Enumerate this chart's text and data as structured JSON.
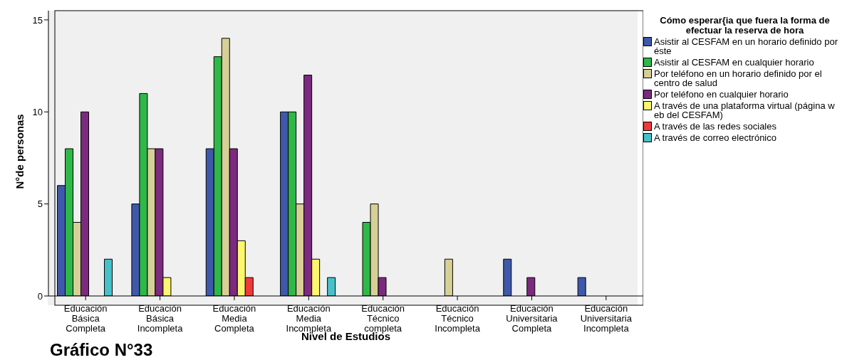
{
  "chart_data": {
    "type": "bar",
    "title": "Gráfico N°33",
    "xlabel": "Nivel de Estudios",
    "ylabel": "N°de personas",
    "legend_title": "Cómo esperar{ia que fuera la forma de efectuar la reserva de hora",
    "categories": [
      "Educación Básica Completa",
      "Educación Básica Incompleta",
      "Educación Media Completa",
      "Educación Media Incompleta",
      "Educación Técnico completa",
      "Educación Técnico Incompleta",
      "Educación Universitaria Completa",
      "Educación Universitaria Incompleta"
    ],
    "series": [
      {
        "name": "Asistir al CESFAM en un horario definido por éste",
        "color": "#3f58aa",
        "values": [
          6,
          5,
          8,
          10,
          0,
          0,
          2,
          1
        ]
      },
      {
        "name": "Asistir al CESFAM  en cualquier horario",
        "color": "#2eb848",
        "values": [
          8,
          11,
          13,
          10,
          4,
          0,
          0,
          0
        ]
      },
      {
        "name": "Por teléfono en un horario definido por el centro de salud",
        "color": "#d6d097",
        "values": [
          4,
          8,
          14,
          5,
          5,
          2,
          0,
          0
        ]
      },
      {
        "name": "Por teléfono en cualquier horario",
        "color": "#7b2a7e",
        "values": [
          10,
          8,
          8,
          12,
          1,
          0,
          1,
          0
        ]
      },
      {
        "name": "A través de una plataforma virtual (página w eb del CESFAM)",
        "color": "#fdf66f",
        "values": [
          0,
          1,
          3,
          2,
          0,
          0,
          0,
          0
        ]
      },
      {
        "name": "A través de las redes sociales",
        "color": "#ef3a39",
        "values": [
          0,
          0,
          1,
          0,
          0,
          0,
          0,
          0
        ]
      },
      {
        "name": "A través de correo electrónico",
        "color": "#47c1c9",
        "values": [
          2,
          0,
          0,
          1,
          0,
          0,
          0,
          0
        ]
      }
    ],
    "ylim": [
      0,
      15.5
    ],
    "yticks": [
      0,
      5,
      10,
      15
    ],
    "grid": false,
    "legend": "top right"
  }
}
